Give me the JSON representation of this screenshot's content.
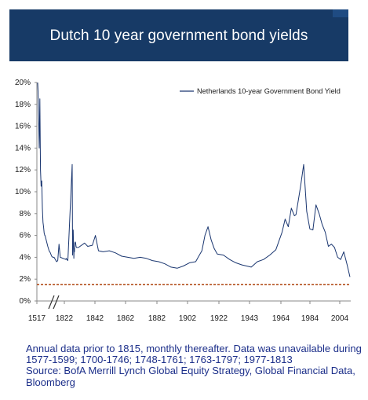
{
  "header": {
    "title": "Dutch 10 year government bond yields"
  },
  "chart_data": {
    "type": "line",
    "title": "Dutch 10 year government bond yields",
    "xlabel": "",
    "ylabel": "",
    "ylim": [
      0,
      20
    ],
    "y_ticks": [
      "0%",
      "2%",
      "4%",
      "6%",
      "8%",
      "10%",
      "12%",
      "14%",
      "16%",
      "18%",
      "20%"
    ],
    "x_ticks": [
      "1517",
      "1822",
      "1842",
      "1862",
      "1882",
      "1902",
      "1922",
      "1943",
      "1964",
      "1984",
      "2004"
    ],
    "axis_break": "between 1517 and 1822",
    "grid": false,
    "legend_position": "top-right",
    "colors": {
      "series": "#1a3670",
      "reference_line": "#b4501e",
      "axis": "#888888",
      "text": "#1c2f8a"
    },
    "reference_line": {
      "y": 1.5,
      "style": "dotted"
    },
    "series": [
      {
        "name": "Netherlands 10-year Government Bond Yield",
        "x": [
          1517,
          1520,
          1525,
          1530,
          1535,
          1540,
          1545,
          1550,
          1555,
          1560,
          1565,
          1570,
          1575,
          1577,
          1599,
          1610,
          1620,
          1630,
          1640,
          1650,
          1660,
          1670,
          1680,
          1690,
          1700,
          1746,
          1748,
          1761,
          1763,
          1797,
          1800,
          1805,
          1810,
          1813,
          1815,
          1818,
          1822,
          1825,
          1828,
          1832,
          1836,
          1840,
          1842,
          1845,
          1847,
          1849,
          1852,
          1856,
          1860,
          1864,
          1868,
          1872,
          1876,
          1880,
          1884,
          1888,
          1892,
          1896,
          1900,
          1904,
          1908,
          1912,
          1914,
          1916,
          1918,
          1920,
          1922,
          1924,
          1926,
          1930,
          1934,
          1938,
          1942,
          1945,
          1948,
          1952,
          1956,
          1960,
          1964,
          1968,
          1970,
          1972,
          1974,
          1976,
          1977,
          1980,
          1982,
          1984,
          1986,
          1988,
          1990,
          1992,
          1994,
          1996,
          1998,
          2000,
          2002,
          2004,
          2006,
          2008,
          2010,
          2012
        ],
        "y": [
          20.0,
          19.2,
          16.5,
          14.0,
          18.5,
          12.0,
          10.5,
          11.0,
          8.5,
          7.2,
          6.8,
          6.2,
          6.0,
          6.0,
          5.0,
          4.6,
          4.4,
          4.1,
          4.0,
          4.0,
          3.8,
          3.6,
          3.7,
          5.2,
          4.0,
          3.8,
          3.9,
          3.7,
          4.0,
          12.5,
          4.2,
          6.5,
          3.9,
          4.8,
          4.5,
          5.3,
          5.4,
          5.3,
          5.0,
          4.9,
          4.9,
          5.3,
          5.0,
          5.1,
          6.0,
          4.6,
          4.5,
          4.6,
          4.4,
          4.1,
          4.0,
          3.9,
          4.0,
          3.9,
          3.7,
          3.6,
          3.4,
          3.1,
          3.0,
          3.2,
          3.5,
          3.6,
          4.1,
          4.6,
          6.0,
          6.8,
          5.6,
          4.8,
          4.3,
          4.2,
          3.8,
          3.5,
          3.3,
          3.2,
          3.1,
          3.6,
          3.8,
          4.2,
          4.7,
          6.3,
          7.5,
          6.8,
          8.5,
          7.8,
          7.9,
          10.5,
          12.5,
          8.2,
          6.6,
          6.5,
          8.8,
          8.0,
          7.0,
          6.3,
          5.0,
          5.2,
          4.9,
          4.0,
          3.8,
          4.5,
          3.4,
          2.2
        ]
      }
    ]
  },
  "footnote": {
    "lines": [
      "Annual data prior to 1815, monthly thereafter. Data was unavailable during",
      "1577-1599; 1700-1746; 1748-1761; 1763-1797; 1977-1813",
      "Source: BofA Merrill Lynch Global Equity Strategy, Global Financial Data,",
      "Bloomberg"
    ]
  }
}
